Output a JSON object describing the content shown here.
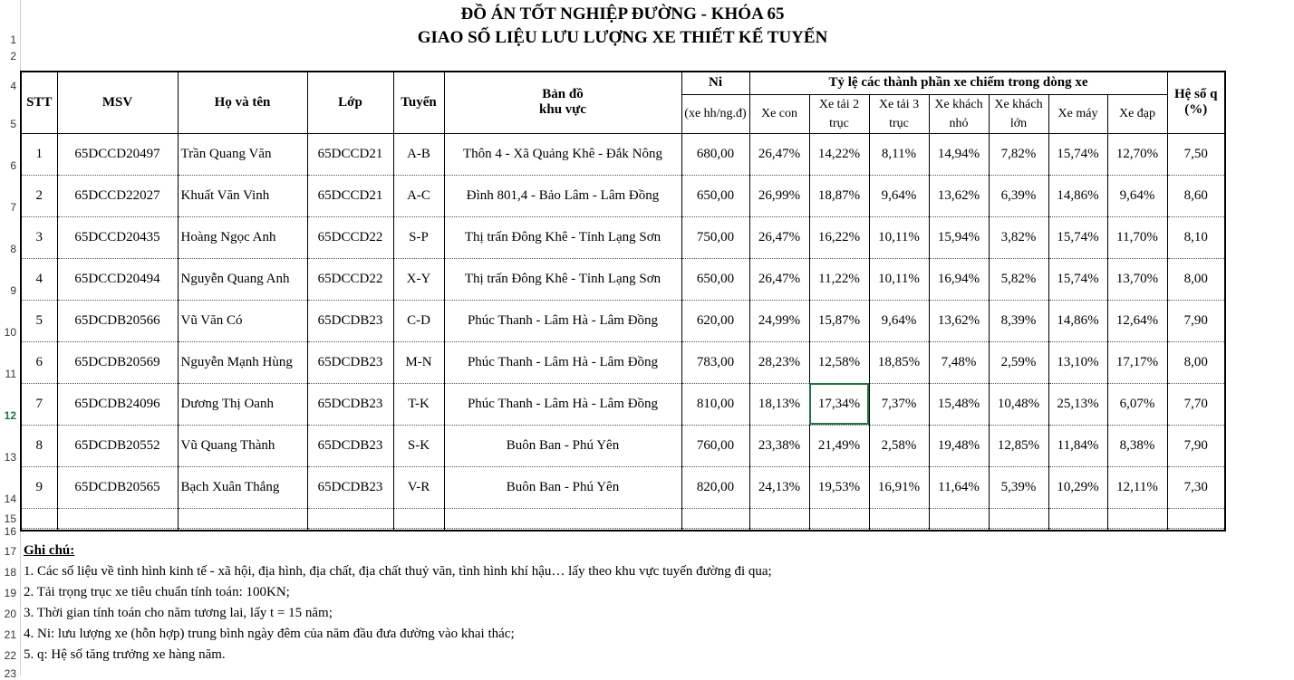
{
  "title1": "ĐỒ ÁN TỐT NGHIỆP ĐƯỜNG - KHÓA 65",
  "title2": "GIAO SỐ LIỆU LƯU LƯỢNG XE THIẾT KẾ TUYẾN",
  "row_numbers": [
    "1",
    "2",
    "4",
    "5",
    "6",
    "7",
    "8",
    "9",
    "10",
    "11",
    "12",
    "13",
    "14",
    "15",
    "16",
    "17",
    "18",
    "19",
    "20",
    "21",
    "22",
    "23"
  ],
  "headers": {
    "stt": "STT",
    "msv": "MSV",
    "name": "Họ và tên",
    "class": "Lớp",
    "route": "Tuyến",
    "map1": "Bản đồ",
    "map2": "khu vực",
    "ni": "Ni",
    "ni_unit": "(xe hh/ng.đ)",
    "ratio_group": "Tỷ lệ các thành phần xe chiếm trong dòng xe",
    "q1": "Hệ số q",
    "q2": "(%)",
    "sub": [
      "Xe con",
      "Xe tải 2 trục",
      "Xe tải 3 trục",
      "Xe khách nhỏ",
      "Xe khách lớn",
      "Xe máy",
      "Xe đạp"
    ]
  },
  "rows": [
    {
      "stt": "1",
      "msv": "65DCCD20497",
      "name": "Trần Quang Văn",
      "class": "65DCCD21",
      "route": "A-B",
      "map": "Thôn 4 - Xã Quảng Khê - Đắk Nông",
      "ni": "680,00",
      "r": [
        "26,47%",
        "14,22%",
        "8,11%",
        "14,94%",
        "7,82%",
        "15,74%",
        "12,70%"
      ],
      "q": "7,50"
    },
    {
      "stt": "2",
      "msv": "65DCCD22027",
      "name": "Khuất Văn Vinh",
      "class": "65DCCD21",
      "route": "A-C",
      "map": "Đình 801,4 - Bảo Lâm - Lâm Đồng",
      "ni": "650,00",
      "r": [
        "26,99%",
        "18,87%",
        "9,64%",
        "13,62%",
        "6,39%",
        "14,86%",
        "9,64%"
      ],
      "q": "8,60"
    },
    {
      "stt": "3",
      "msv": "65DCCD20435",
      "name": "Hoàng Ngọc Anh",
      "class": "65DCCD22",
      "route": "S-P",
      "map": "Thị trấn Đông Khê - Tỉnh Lạng Sơn",
      "ni": "750,00",
      "r": [
        "26,47%",
        "16,22%",
        "10,11%",
        "15,94%",
        "3,82%",
        "15,74%",
        "11,70%"
      ],
      "q": "8,10"
    },
    {
      "stt": "4",
      "msv": "65DCCD20494",
      "name": "Nguyễn Quang Anh",
      "class": "65DCCD22",
      "route": "X-Y",
      "map": "Thị trấn Đông Khê - Tỉnh Lạng Sơn",
      "ni": "650,00",
      "r": [
        "26,47%",
        "11,22%",
        "10,11%",
        "16,94%",
        "5,82%",
        "15,74%",
        "13,70%"
      ],
      "q": "8,00"
    },
    {
      "stt": "5",
      "msv": "65DCDB20566",
      "name": "Vũ Văn Có",
      "class": "65DCDB23",
      "route": "C-D",
      "map": "Phúc Thanh - Lâm Hà - Lâm Đồng",
      "ni": "620,00",
      "r": [
        "24,99%",
        "15,87%",
        "9,64%",
        "13,62%",
        "8,39%",
        "14,86%",
        "12,64%"
      ],
      "q": "7,90"
    },
    {
      "stt": "6",
      "msv": "65DCDB20569",
      "name": "Nguyễn Mạnh Hùng",
      "class": "65DCDB23",
      "route": "M-N",
      "map": "Phúc Thanh - Lâm Hà - Lâm Đồng",
      "ni": "783,00",
      "r": [
        "28,23%",
        "12,58%",
        "18,85%",
        "7,48%",
        "2,59%",
        "13,10%",
        "17,17%"
      ],
      "q": "8,00"
    },
    {
      "stt": "7",
      "msv": "65DCDB24096",
      "name": "Dương Thị Oanh",
      "class": "65DCDB23",
      "route": "T-K",
      "map": "Phúc Thanh - Lâm Hà - Lâm Đồng",
      "ni": "810,00",
      "r": [
        "18,13%",
        "17,34%",
        "7,37%",
        "15,48%",
        "10,48%",
        "25,13%",
        "6,07%"
      ],
      "q": "7,70"
    },
    {
      "stt": "8",
      "msv": "65DCDB20552",
      "name": "Vũ Quang Thành",
      "class": "65DCDB23",
      "route": "S-K",
      "map": "Buôn Ban - Phú Yên",
      "ni": "760,00",
      "r": [
        "23,38%",
        "21,49%",
        "2,58%",
        "19,48%",
        "12,85%",
        "11,84%",
        "8,38%"
      ],
      "q": "7,90"
    },
    {
      "stt": "9",
      "msv": "65DCDB20565",
      "name": "Bạch Xuân Thắng",
      "class": "65DCDB23",
      "route": "V-R",
      "map": "Buôn Ban - Phú Yên",
      "ni": "820,00",
      "r": [
        "24,13%",
        "19,53%",
        "16,91%",
        "11,64%",
        "5,39%",
        "10,29%",
        "12,11%"
      ],
      "q": "7,30"
    }
  ],
  "notes_title": "Ghi chú:",
  "notes": [
    "1. Các số liệu về tình hình kinh tế - xã hội, địa hình, địa chất, địa chất thuỷ văn, tình hình khí hậu… lấy theo khu vực tuyến đường đi qua;",
    "2. Tải trọng trục xe tiêu chuẩn tính toán: 100KN;",
    "3. Thời gian tính toán cho năm tương lai, lấy t = 15 năm;",
    "4. Ni: lưu lượng xe (hỗn hợp) trung bình ngày đêm của năm đầu đưa đường vào khai thác;",
    "5. q: Hệ số tăng trưởng xe hàng năm."
  ]
}
